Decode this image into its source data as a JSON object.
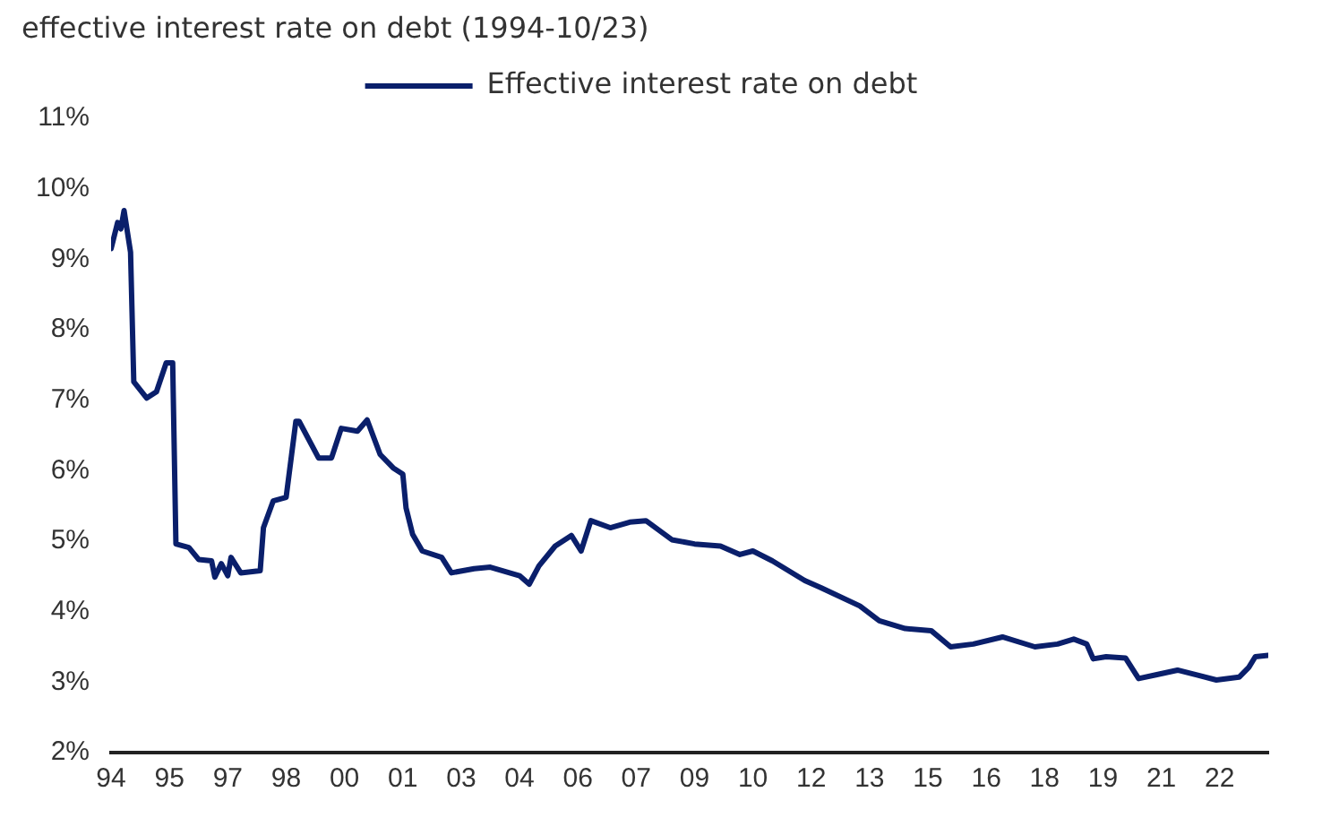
{
  "chart_data": {
    "type": "line",
    "title": "effective interest rate on debt (1994-10/23)",
    "x": [
      "1994-01",
      "1994-03",
      "1994-04",
      "1994-05",
      "1994-07",
      "1994-08",
      "1994-12",
      "1995-03",
      "1995-06",
      "1995-08",
      "1995-09",
      "1996-01",
      "1996-04",
      "1996-08",
      "1996-09",
      "1996-11",
      "1997-01",
      "1997-02",
      "1997-05",
      "1997-11",
      "1997-12",
      "1998-03",
      "1998-07",
      "1998-10",
      "1998-11",
      "1999-05",
      "1999-09",
      "1999-12",
      "2000-05",
      "2000-08",
      "2000-12",
      "2001-04",
      "2001-07",
      "2001-08",
      "2001-10",
      "2002-01",
      "2002-07",
      "2002-10",
      "2003-05",
      "2003-10",
      "2004-07",
      "2004-10",
      "2005-01",
      "2005-06",
      "2005-11",
      "2006-02",
      "2006-05",
      "2006-11",
      "2007-05",
      "2007-10",
      "2008-06",
      "2009-01",
      "2009-09",
      "2010-03",
      "2010-07",
      "2011-01",
      "2011-11",
      "2012-04",
      "2013-04",
      "2013-10",
      "2014-06",
      "2015-02",
      "2015-08",
      "2016-03",
      "2016-12",
      "2017-10",
      "2018-05",
      "2018-10",
      "2019-02",
      "2019-04",
      "2019-08",
      "2020-02",
      "2020-06",
      "2020-11",
      "2021-06",
      "2021-12",
      "2022-06",
      "2023-01",
      "2023-04",
      "2023-06",
      "2023-10"
    ],
    "series": [
      {
        "name": "Effective interest rate on debt",
        "color": "#0a1f6b",
        "values": [
          9.15,
          9.52,
          9.43,
          9.69,
          9.1,
          7.26,
          7.03,
          7.12,
          7.53,
          7.53,
          4.96,
          4.91,
          4.74,
          4.72,
          4.49,
          4.68,
          4.51,
          4.77,
          4.55,
          4.58,
          5.19,
          5.57,
          5.62,
          6.7,
          6.7,
          6.18,
          6.18,
          6.6,
          6.56,
          6.72,
          6.23,
          6.04,
          5.95,
          5.47,
          5.1,
          4.86,
          4.77,
          4.55,
          4.61,
          4.63,
          4.51,
          4.39,
          4.65,
          4.93,
          5.08,
          4.86,
          5.29,
          5.19,
          5.27,
          5.29,
          5.02,
          4.96,
          4.93,
          4.81,
          4.86,
          4.72,
          4.44,
          4.34,
          4.08,
          3.87,
          3.76,
          3.73,
          3.5,
          3.54,
          3.64,
          3.5,
          3.54,
          3.61,
          3.54,
          3.33,
          3.36,
          3.34,
          3.05,
          3.1,
          3.17,
          3.1,
          3.03,
          3.07,
          3.21,
          3.36,
          3.38
        ]
      }
    ],
    "xlim": [
      "1994-01",
      "2023-10"
    ],
    "xticks": [
      {
        "value": "1994-01",
        "label": "94"
      },
      {
        "value": "1995-07",
        "label": "95"
      },
      {
        "value": "1997-01",
        "label": "97"
      },
      {
        "value": "1998-07",
        "label": "98"
      },
      {
        "value": "2000-01",
        "label": "00"
      },
      {
        "value": "2001-07",
        "label": "01"
      },
      {
        "value": "2003-01",
        "label": "03"
      },
      {
        "value": "2004-07",
        "label": "04"
      },
      {
        "value": "2006-01",
        "label": "06"
      },
      {
        "value": "2007-07",
        "label": "07"
      },
      {
        "value": "2009-01",
        "label": "09"
      },
      {
        "value": "2010-07",
        "label": "10"
      },
      {
        "value": "2012-01",
        "label": "12"
      },
      {
        "value": "2013-07",
        "label": "13"
      },
      {
        "value": "2015-01",
        "label": "15"
      },
      {
        "value": "2016-07",
        "label": "16"
      },
      {
        "value": "2018-01",
        "label": "18"
      },
      {
        "value": "2019-07",
        "label": "19"
      },
      {
        "value": "2021-01",
        "label": "21"
      },
      {
        "value": "2022-07",
        "label": "22"
      }
    ],
    "ylim": [
      2,
      11
    ],
    "yticks": [
      {
        "value": 2,
        "label": "2%"
      },
      {
        "value": 3,
        "label": "3%"
      },
      {
        "value": 4,
        "label": "4%"
      },
      {
        "value": 5,
        "label": "5%"
      },
      {
        "value": 6,
        "label": "6%"
      },
      {
        "value": 7,
        "label": "7%"
      },
      {
        "value": 8,
        "label": "8%"
      },
      {
        "value": 9,
        "label": "9%"
      },
      {
        "value": 10,
        "label": "10%"
      },
      {
        "value": 11,
        "label": "11%"
      }
    ],
    "grid": false,
    "legend": "top",
    "marker": "none",
    "line_style": "solid"
  }
}
